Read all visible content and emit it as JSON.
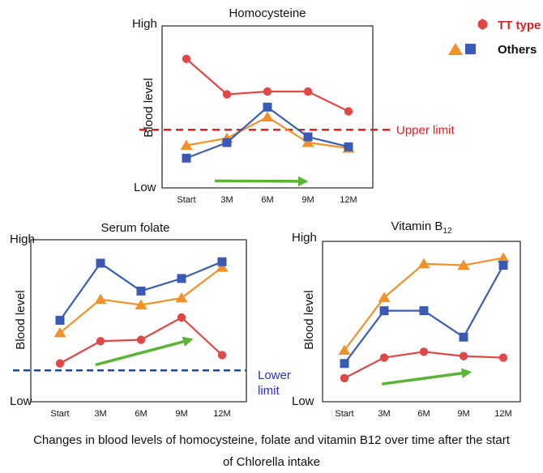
{
  "colors": {
    "tt": "#e04848",
    "others_line": "#3a5fb0",
    "others_square": "#3b5ab4",
    "others_triangle": "#f2902a",
    "upper_limit": "#e02020",
    "lower_limit": "#1c3d8f",
    "lower_limit_text": "#2d2dc8",
    "arrow": "#5ab536",
    "axis": "#222222"
  },
  "legend": {
    "tt_label": "TT type",
    "others_label": "Others"
  },
  "caption": {
    "line1": "Changes in blood levels of homocysteine, folate and vitamin B12 over time after the start",
    "line2": "of Chlorella intake"
  },
  "chart_data": [
    {
      "type": "line",
      "title": "Homocysteine",
      "categories": [
        "Start",
        "3M",
        "6M",
        "9M",
        "12M"
      ],
      "ylabel": "Blood level",
      "y_high_label": "High",
      "y_low_label": "Low",
      "ylim": [
        0,
        100
      ],
      "series": [
        {
          "name": "TT type",
          "marker": "circle",
          "values": [
            87,
            62,
            64,
            64,
            50
          ]
        },
        {
          "name": "Others (triangle)",
          "marker": "triangle",
          "values": [
            26,
            31,
            46,
            28,
            24
          ]
        },
        {
          "name": "Others (square)",
          "marker": "square",
          "values": [
            17,
            28,
            53,
            32,
            25
          ]
        }
      ],
      "reference_line": {
        "label": "Upper limit",
        "value": 37,
        "style": "dashed",
        "color": "upper_limit"
      },
      "trend_arrow": {
        "direction": "down",
        "from": [
          0.25,
          0.9
        ],
        "to": [
          0.68,
          0.62
        ]
      }
    },
    {
      "type": "line",
      "title": "Serum folate",
      "categories": [
        "Start",
        "3M",
        "6M",
        "9M",
        "12M"
      ],
      "ylabel": "Blood level",
      "y_high_label": "High",
      "y_low_label": "Low",
      "ylim": [
        0,
        100
      ],
      "series": [
        {
          "name": "TT type",
          "marker": "circle",
          "values": [
            17,
            33,
            34,
            50,
            23
          ]
        },
        {
          "name": "Others (triangle)",
          "marker": "triangle",
          "values": [
            39,
            63,
            59,
            64,
            86
          ]
        },
        {
          "name": "Others (square)",
          "marker": "square",
          "values": [
            48,
            89,
            69,
            78,
            90
          ]
        }
      ],
      "reference_line": {
        "label": "Lower limit",
        "value": 12,
        "style": "dashed",
        "color": "lower_limit"
      },
      "trend_arrow": {
        "direction": "up",
        "from": [
          0.3,
          16
        ],
        "to": [
          0.74,
          34
        ]
      }
    },
    {
      "type": "line",
      "title": "Vitamin B12",
      "title_main": "Vitamin B",
      "title_sub": "12",
      "categories": [
        "Start",
        "3M",
        "6M",
        "9M",
        "12M"
      ],
      "ylabel": "Blood level",
      "y_high_label": "High",
      "y_low_label": "Low",
      "ylim": [
        0,
        100
      ],
      "series": [
        {
          "name": "TT type",
          "marker": "circle",
          "values": [
            10,
            24,
            28,
            25,
            24
          ]
        },
        {
          "name": "Others (triangle)",
          "marker": "triangle",
          "values": [
            29,
            65,
            88,
            87,
            92
          ]
        },
        {
          "name": "Others (square)",
          "marker": "square",
          "values": [
            20,
            56,
            56,
            38,
            87
          ]
        }
      ],
      "trend_arrow": {
        "direction": "up",
        "from": [
          0.3,
          6
        ],
        "to": [
          0.74,
          14
        ]
      }
    }
  ]
}
